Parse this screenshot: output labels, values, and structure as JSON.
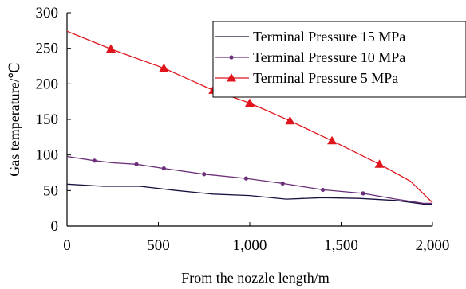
{
  "chart_data": {
    "type": "line",
    "title": "",
    "xlabel": "From the nozzle length/m",
    "ylabel": "Gas temperature/℃",
    "xlim": [
      0,
      2000
    ],
    "ylim": [
      0,
      300
    ],
    "x_ticks": [
      0,
      500,
      1000,
      1500,
      2000
    ],
    "x_tick_labels": [
      "0",
      "500",
      "1,000",
      "1,500",
      "2,000"
    ],
    "y_ticks": [
      0,
      50,
      100,
      150,
      200,
      250,
      300
    ],
    "y_tick_labels": [
      "0",
      "50",
      "100",
      "150",
      "200",
      "250",
      "300"
    ],
    "grid": false,
    "legend_position": "top-right",
    "series": [
      {
        "name": "Terminal Pressure 15 MPa",
        "color": "#1a1040",
        "marker": "none",
        "x": [
          0,
          200,
          400,
          600,
          800,
          1000,
          1200,
          1400,
          1600,
          1800,
          1950,
          2000
        ],
        "y": [
          59,
          56,
          56,
          50,
          45,
          43,
          38,
          40,
          39,
          36,
          31,
          31
        ],
        "marker_x": [],
        "marker_y": []
      },
      {
        "name": "Terminal Pressure 10 MPa",
        "color": "#6b2f7a",
        "marker": "circle",
        "x": [
          0,
          150,
          250,
          380,
          530,
          750,
          980,
          1180,
          1400,
          1620,
          1800,
          1950,
          2000
        ],
        "y": [
          98,
          92,
          89,
          87,
          81,
          73,
          67,
          60,
          51,
          46,
          38,
          32,
          32
        ],
        "marker_x": [
          150,
          380,
          530,
          750,
          980,
          1180,
          1400,
          1620
        ],
        "marker_y": [
          92,
          87,
          81,
          73,
          67,
          60,
          51,
          46
        ]
      },
      {
        "name": "Terminal Pressure 5 MPa",
        "color": "#e0141c",
        "marker": "triangle",
        "x": [
          0,
          240,
          530,
          800,
          1000,
          1220,
          1450,
          1710,
          1880,
          2000
        ],
        "y": [
          274,
          249,
          222,
          191,
          173,
          148,
          120,
          87,
          63,
          33
        ],
        "marker_x": [
          240,
          530,
          800,
          1000,
          1220,
          1450,
          1710
        ],
        "marker_y": [
          249,
          222,
          191,
          173,
          148,
          120,
          87
        ]
      }
    ]
  }
}
